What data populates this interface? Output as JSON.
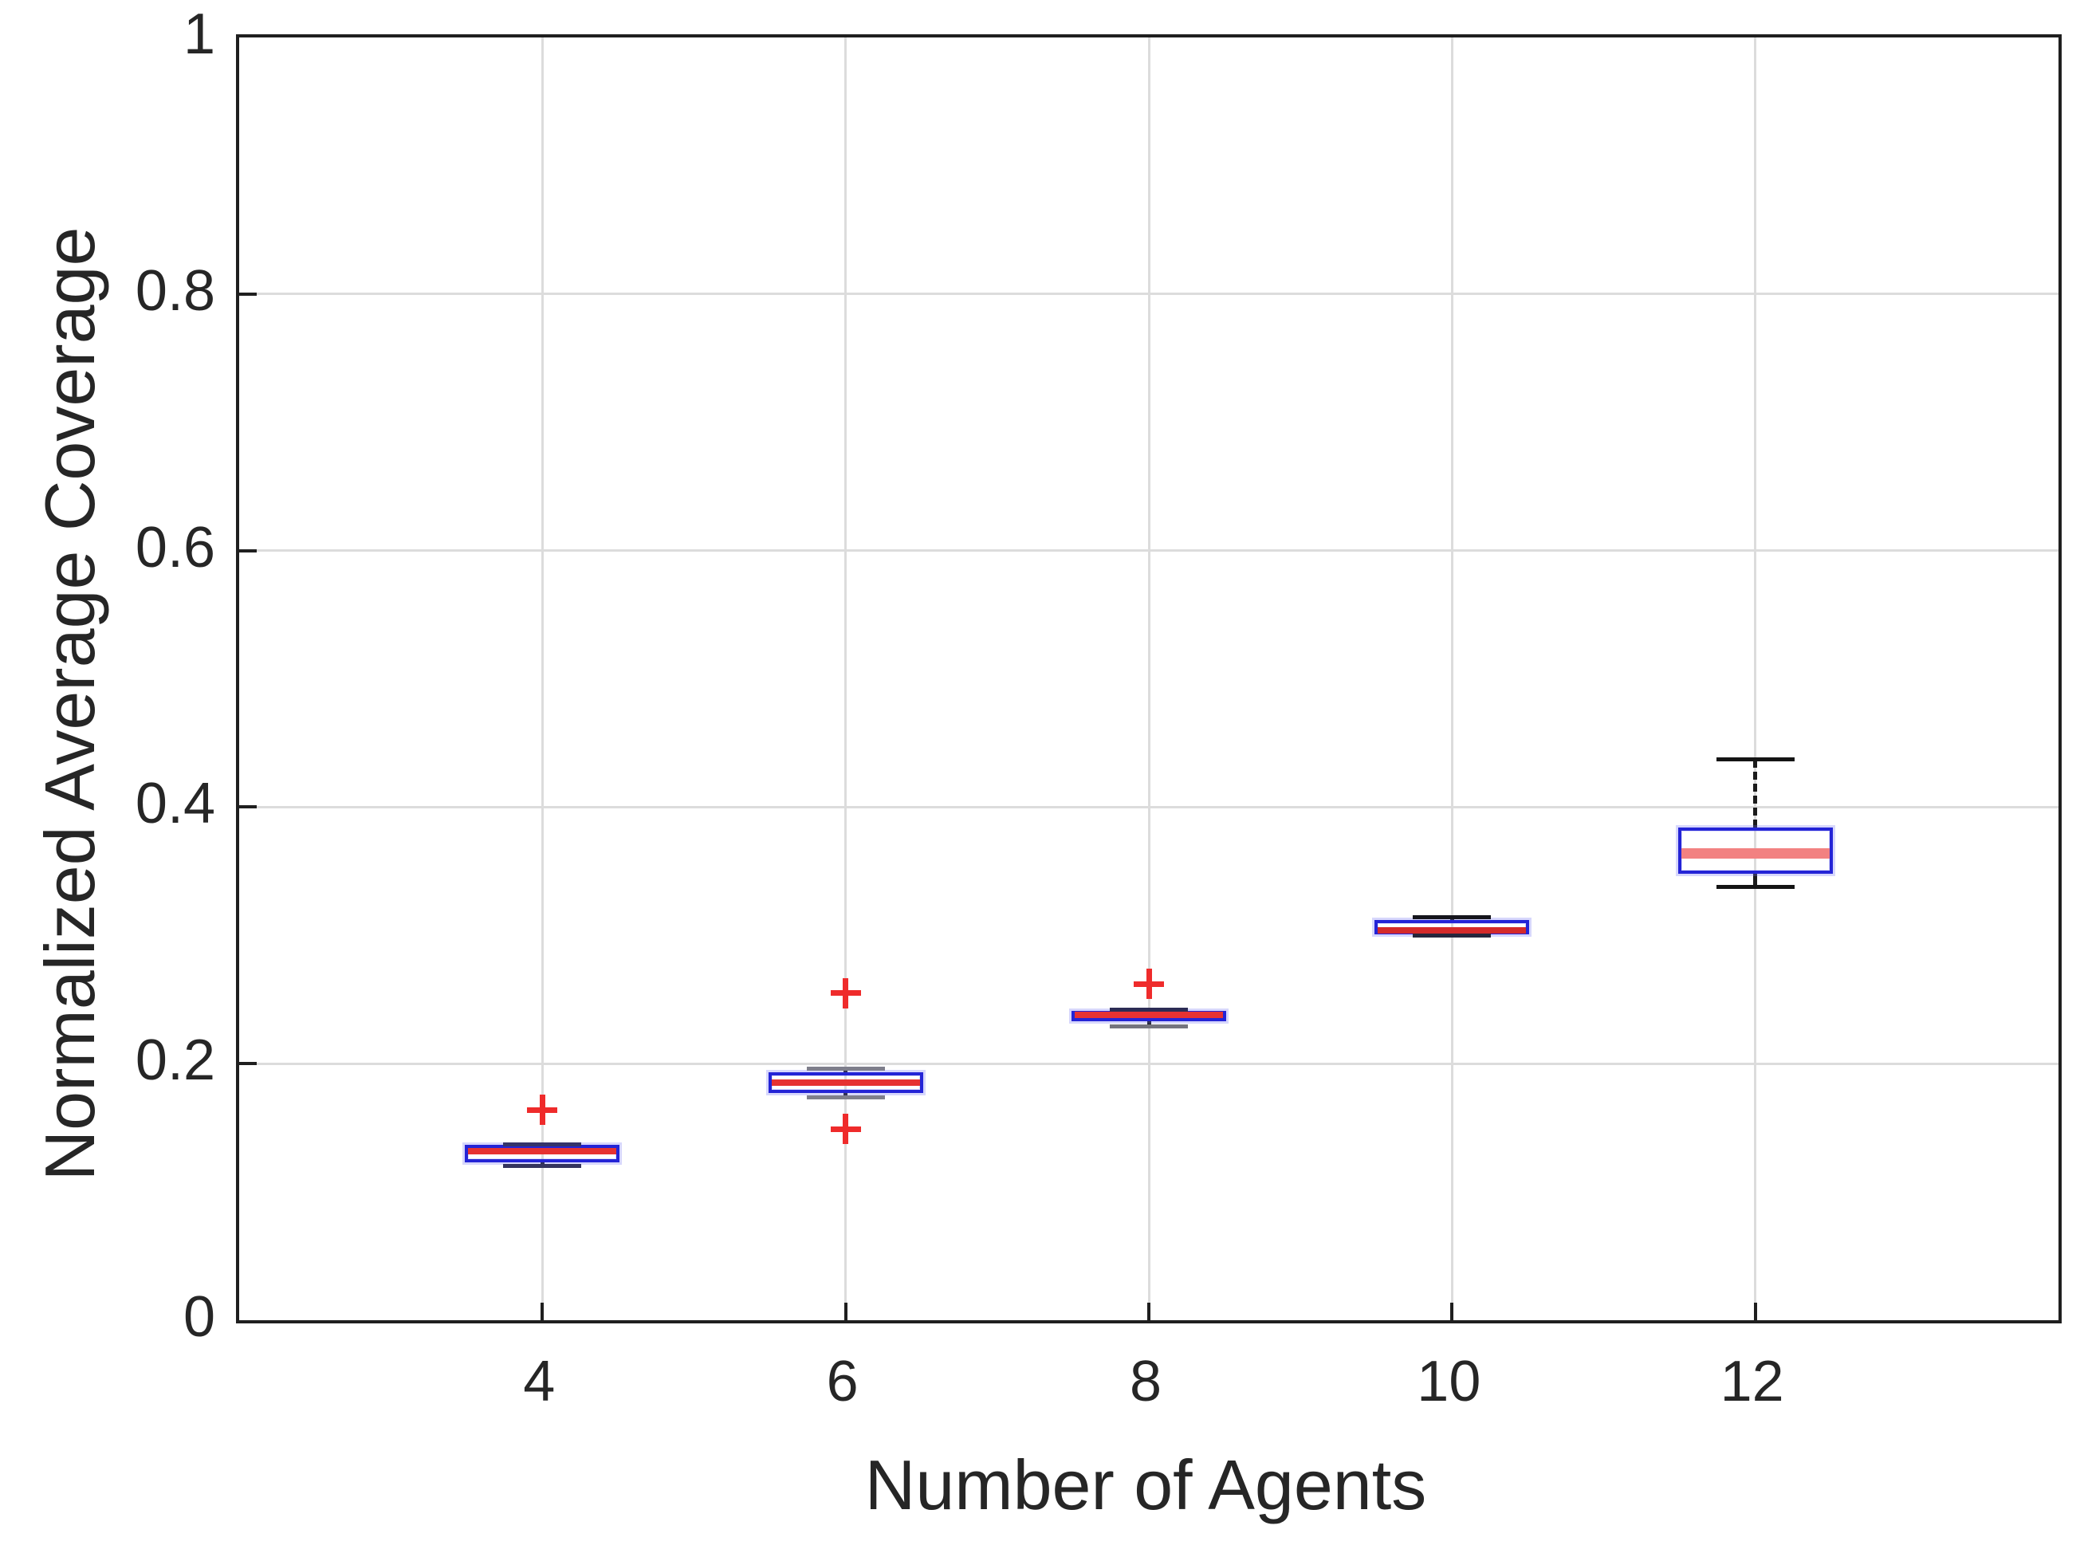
{
  "chart_data": {
    "type": "box",
    "title": "",
    "xlabel": "Number of Agents",
    "ylabel": "Normalized Average Coverage",
    "xlim": [
      2,
      14
    ],
    "ylim": [
      0,
      1
    ],
    "grid": true,
    "x_ticks": [
      4,
      6,
      8,
      10,
      12
    ],
    "x_tick_labels": [
      "4",
      "6",
      "8",
      "10",
      "12"
    ],
    "y_ticks": [
      0,
      0.2,
      0.4,
      0.6,
      0.8,
      1
    ],
    "y_tick_labels": [
      "0",
      "0.2",
      "0.4",
      "0.6",
      "0.8",
      "1"
    ],
    "boxes": [
      {
        "x": 4,
        "whisker_low": 0.12,
        "q1": 0.123,
        "median": 0.132,
        "q3": 0.137,
        "whisker_high": 0.137,
        "outliers": [
          0.164
        ],
        "median_color": "#e63232",
        "median_width": 8,
        "cap_color_high": "#34346a",
        "cap_color_low": "#34345e"
      },
      {
        "x": 6,
        "whisker_low": 0.174,
        "q1": 0.177,
        "median": 0.185,
        "q3": 0.193,
        "whisker_high": 0.196,
        "outliers": [
          0.255,
          0.149
        ],
        "median_color": "#e63232",
        "median_width": 8,
        "cap_color_high": "#7f7f8c",
        "cap_color_low": "#7f7f8c"
      },
      {
        "x": 8,
        "whisker_low": 0.229,
        "q1": 0.233,
        "median": 0.238,
        "q3": 0.241,
        "whisker_high": 0.242,
        "outliers": [
          0.262
        ],
        "median_color": "#e63232",
        "median_width": 8,
        "cap_color_high": "#2c2c55",
        "cap_color_low": "#74747f"
      },
      {
        "x": 10,
        "whisker_low": 0.3,
        "q1": 0.301,
        "median": 0.304,
        "q3": 0.312,
        "whisker_high": 0.314,
        "outliers": [],
        "median_color": "#d42a2a",
        "median_width": 8,
        "cap_color_high": "#15151c",
        "cap_color_low": "#26263c"
      },
      {
        "x": 12,
        "whisker_low": 0.338,
        "q1": 0.348,
        "median": 0.364,
        "q3": 0.384,
        "whisker_high": 0.437,
        "outliers": [],
        "median_color": "#f28181",
        "median_width": 13,
        "cap_color_high": "#141414",
        "cap_color_low": "#141414"
      }
    ],
    "colors": {
      "box_edge": "#2424d6",
      "median": "#e63232",
      "whisker": "#1b1b1b",
      "outlier": "#ef2b2b",
      "grid": "#dcdcdc",
      "axis": "#1f1f1f",
      "text": "#262626",
      "background": "#ffffff"
    }
  }
}
